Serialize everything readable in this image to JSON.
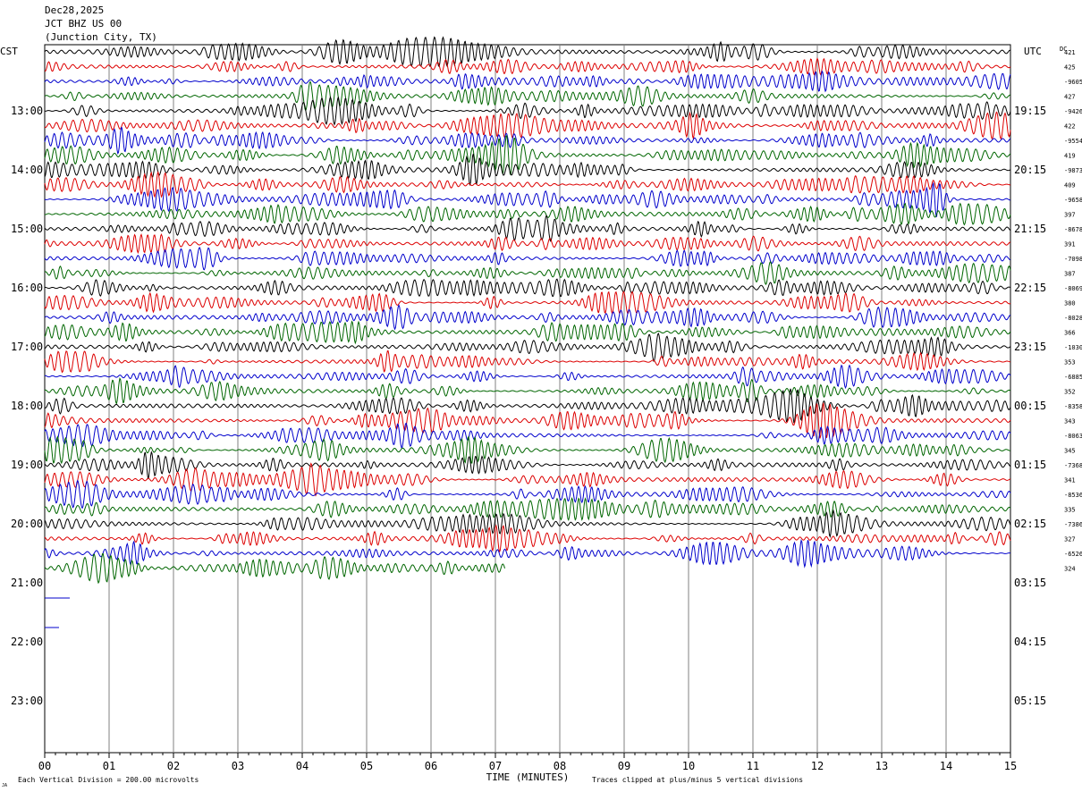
{
  "header": {
    "date": "Dec28,2025",
    "station": "JCT BHZ US 00",
    "location": "(Junction City, TX)"
  },
  "left_zone": "CST",
  "right_zone": "UTC",
  "dc_label": "DC",
  "footer": {
    "scale_note": "Each Vertical Division =  200.00 microvolts",
    "axis_title": "TIME (MINUTES)",
    "clip_note": "Traces clipped at plus/minus 5 vertical divisions",
    "corner_mark": "JA"
  },
  "chart_data": {
    "type": "line",
    "title": "",
    "xlabel": "TIME (MINUTES)",
    "ylabel": "",
    "x_ticks": [
      "00",
      "01",
      "02",
      "03",
      "04",
      "05",
      "06",
      "07",
      "08",
      "09",
      "10",
      "11",
      "12",
      "13",
      "14",
      "15"
    ],
    "xlim": [
      0,
      15
    ],
    "grid": "vertical lines every minute",
    "trace_colors": [
      "#000000",
      "#dd0000",
      "#0000cc",
      "#006600"
    ],
    "cst_hour_labels": [
      "13:00",
      "14:00",
      "15:00",
      "16:00",
      "17:00",
      "18:00",
      "19:00",
      "20:00",
      "21:00",
      "22:00",
      "23:00"
    ],
    "utc_labels": [
      "19:15",
      "20:15",
      "21:15",
      "22:15",
      "23:15",
      "00:15",
      "01:15",
      "02:15",
      "03:15",
      "04:15",
      "05:15"
    ],
    "dc_offsets": [
      "421",
      "425",
      "-9605",
      "427",
      "-9426",
      "422",
      "-9554",
      "419",
      "-9873",
      "409",
      "-9658",
      "397",
      "-8678",
      "391",
      "-7098",
      "387",
      "-8069",
      "380",
      "-8028",
      "366",
      "-10300",
      "353",
      "-6885",
      "352",
      "-8358",
      "343",
      "-8063",
      "345",
      "-7368",
      "341",
      "-8536",
      "335",
      "-7386",
      "327",
      "-6526",
      "324"
    ],
    "traces_drawn": 36,
    "last_trace_end_minute": 7.15
  }
}
